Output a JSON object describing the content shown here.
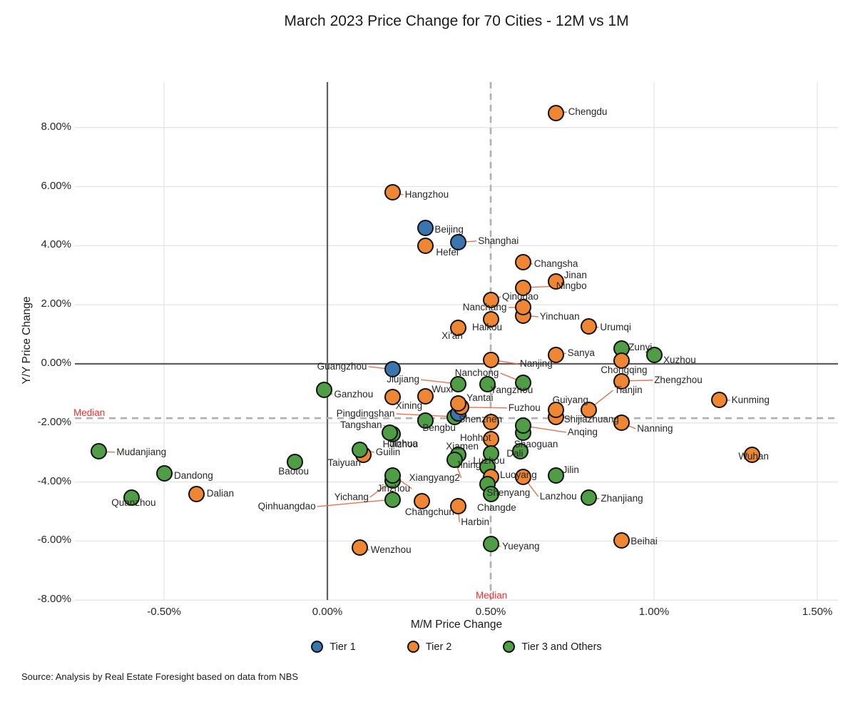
{
  "title": "March 2023 Price Change for 70 Cities - 12M vs 1M",
  "source": "Source: Analysis by Real Estate Foresight based on data from NBS",
  "axes": {
    "x_title": "M/M Price Change",
    "y_title": "Y/Y Price Change",
    "x_ticks": [
      {
        "label": "-0.50%",
        "value": -0.5
      },
      {
        "label": "0.00%",
        "value": 0.0
      },
      {
        "label": "0.50%",
        "value": 0.5
      },
      {
        "label": "1.00%",
        "value": 1.0
      },
      {
        "label": "1.50%",
        "value": 1.5
      }
    ],
    "y_ticks": [
      {
        "label": "8.00%",
        "value": 8
      },
      {
        "label": "6.00%",
        "value": 6
      },
      {
        "label": "4.00%",
        "value": 4
      },
      {
        "label": "2.00%",
        "value": 2
      },
      {
        "label": "0.00%",
        "value": 0
      },
      {
        "label": "-2.00%",
        "value": -2
      },
      {
        "label": "-4.00%",
        "value": -4
      },
      {
        "label": "-6.00%",
        "value": -6
      },
      {
        "label": "-8.00%",
        "value": -8
      }
    ]
  },
  "medians": {
    "vertical": {
      "label": "Median",
      "value": 0.5
    },
    "horizontal": {
      "label": "Median",
      "value": -1.84
    }
  },
  "legend": [
    {
      "label": "Tier 1",
      "tier": 1
    },
    {
      "label": "Tier 2",
      "tier": 2
    },
    {
      "label": "Tier 3 and Others",
      "tier": 3
    }
  ],
  "colors": {
    "tier1": "#3b75af",
    "tier2": "#ef8633",
    "tier3": "#4f9d45",
    "dot_border": "#111111",
    "leader": "#e8724e",
    "median_label": "#f82c2c",
    "median_line": "#b0b0b0",
    "axis_line": "#5f5f5f",
    "gridline": "#e4e4e4",
    "text": "#262626"
  },
  "chart_data": {
    "type": "scatter",
    "xlabel": "M/M Price Change",
    "ylabel": "Y/Y Price Change",
    "xlim": [
      -0.77,
      1.56
    ],
    "ylim": [
      -8.0,
      9.5
    ],
    "grid": true,
    "legend_position": "bottom",
    "units": "percent",
    "points": [
      {
        "city": "Beijing",
        "tier": 1,
        "x": 0.3,
        "y": 4.59,
        "lp": [
          13,
          2
        ]
      },
      {
        "city": "Shanghai",
        "tier": 1,
        "x": 0.4,
        "y": 4.11,
        "lp": [
          28,
          -2
        ],
        "ld": true
      },
      {
        "city": "Guangzhou",
        "tier": 1,
        "x": 0.2,
        "y": -0.19,
        "lp": [
          -106,
          -4
        ],
        "ld": true
      },
      {
        "city": "Shenzhen",
        "tier": 1,
        "x": 0.4,
        "y": -1.69,
        "lp": [
          1,
          8
        ],
        "z": 1
      },
      {
        "city": "Chengdu",
        "tier": 2,
        "x": 0.7,
        "y": 8.5,
        "lp": [
          17,
          -1
        ],
        "ld": true
      },
      {
        "city": "Hangzhou",
        "tier": 2,
        "x": 0.2,
        "y": 5.8,
        "lp": [
          17,
          3
        ],
        "ld": true
      },
      {
        "city": "Hefei",
        "tier": 2,
        "x": 0.3,
        "y": 3.99,
        "lp": [
          15,
          9
        ]
      },
      {
        "city": "Changsha",
        "tier": 2,
        "x": 0.6,
        "y": 3.45,
        "lp": [
          15,
          3
        ],
        "ld": true
      },
      {
        "city": "Jinan",
        "tier": 2,
        "x": 0.7,
        "y": 2.8,
        "lp": [
          11,
          -8
        ]
      },
      {
        "city": "Ningbo",
        "tier": 2,
        "x": 0.6,
        "y": 2.58,
        "lp": [
          46,
          -2
        ],
        "ld": true
      },
      {
        "city": "Qingdao",
        "tier": 2,
        "x": 0.5,
        "y": 2.15,
        "lp": [
          16,
          -5
        ],
        "ld": true
      },
      {
        "city": "Nanchang",
        "tier": 2,
        "x": 0.6,
        "y": 1.91,
        "lp": [
          -85,
          0
        ],
        "ld": true
      },
      {
        "city": "Yinchuan",
        "tier": 2,
        "x": 0.6,
        "y": 1.64,
        "lp": [
          23,
          2
        ],
        "ld": true,
        "z": 2
      },
      {
        "city": "Haikou",
        "tier": 2,
        "x": 0.5,
        "y": 1.52,
        "lp": [
          -26,
          12
        ]
      },
      {
        "city": "Xi'an",
        "tier": 2,
        "x": 0.4,
        "y": 1.21,
        "lp": [
          -23,
          11
        ]
      },
      {
        "city": "Urumqi",
        "tier": 2,
        "x": 0.8,
        "y": 1.26,
        "lp": [
          16,
          1
        ],
        "ld": true
      },
      {
        "city": "Sanya",
        "tier": 2,
        "x": 0.7,
        "y": 0.31,
        "lp": [
          16,
          -2
        ],
        "ld": true
      },
      {
        "city": "Nanjing",
        "tier": 2,
        "x": 0.5,
        "y": 0.14,
        "lp": [
          41,
          6
        ],
        "ld": true
      },
      {
        "city": "Chongqing",
        "tier": 2,
        "x": 0.9,
        "y": 0.12,
        "lp": [
          -29,
          14
        ]
      },
      {
        "city": "Zhengzhou",
        "tier": 2,
        "x": 0.9,
        "y": -0.58,
        "lp": [
          46,
          -1
        ],
        "ld": true
      },
      {
        "city": "Kunming",
        "tier": 2,
        "x": 1.2,
        "y": -1.21,
        "lp": [
          17,
          1
        ],
        "ld": true
      },
      {
        "city": "Tianjin",
        "tier": 2,
        "x": 0.8,
        "y": -1.55,
        "lp": [
          36,
          -27
        ],
        "ld": true
      },
      {
        "city": "Guiyang",
        "tier": 2,
        "x": 0.7,
        "y": -1.57,
        "lp": [
          -5,
          -14
        ]
      },
      {
        "city": "Shijiazhuang",
        "tier": 2,
        "x": 0.7,
        "y": -1.81,
        "lp": [
          11,
          3
        ],
        "z": 2
      },
      {
        "city": "Nanning",
        "tier": 2,
        "x": 0.9,
        "y": -2.0,
        "lp": [
          22,
          8
        ],
        "ld": true
      },
      {
        "city": "Xining",
        "tier": 2,
        "x": 0.2,
        "y": -1.13,
        "lp": [
          4,
          12
        ]
      },
      {
        "city": "Wuxi",
        "tier": 2,
        "x": 0.3,
        "y": -1.09,
        "lp": [
          9,
          -9
        ]
      },
      {
        "city": "Yantai",
        "tier": 2,
        "x": 0.4,
        "y": -1.35,
        "lp": [
          12,
          -8
        ],
        "ld": true
      },
      {
        "city": "Fuzhou",
        "tier": 2,
        "x": 0.41,
        "y": -1.47,
        "lp": [
          66,
          1
        ],
        "ld": true,
        "z": 2
      },
      {
        "city": "Jinhua",
        "tier": 2,
        "x": 0.5,
        "y": -1.96,
        "lp": [
          -142,
          31
        ]
      },
      {
        "city": "Hohhot",
        "tier": 2,
        "x": 0.5,
        "y": -2.56,
        "lp": [
          -43,
          -2
        ],
        "ld": true
      },
      {
        "city": "Taiyuan",
        "tier": 2,
        "x": 0.11,
        "y": -3.09,
        "lp": [
          -50,
          11
        ],
        "z": 2
      },
      {
        "city": "Wuhan",
        "tier": 2,
        "x": 1.3,
        "y": -3.09,
        "lp": [
          -19,
          2
        ]
      },
      {
        "city": "Luoyang",
        "tier": 2,
        "x": 0.5,
        "y": -3.84,
        "lp": [
          13,
          -3
        ],
        "ld": true
      },
      {
        "city": "Lanzhou",
        "tier": 2,
        "x": 0.6,
        "y": -3.82,
        "lp": [
          23,
          28
        ],
        "ld": true
      },
      {
        "city": "Dalian",
        "tier": 2,
        "x": -0.4,
        "y": -4.4,
        "lp": [
          14,
          0
        ]
      },
      {
        "city": "Changchun",
        "tier": 2,
        "x": 0.29,
        "y": -4.66,
        "lp": [
          -24,
          15
        ]
      },
      {
        "city": "Harbin",
        "tier": 2,
        "x": 0.4,
        "y": -4.83,
        "lp": [
          4,
          22
        ],
        "ld": true
      },
      {
        "city": "Wenzhou",
        "tier": 2,
        "x": 0.1,
        "y": -6.21,
        "lp": [
          15,
          4
        ],
        "ld": true
      },
      {
        "city": "Beihai",
        "tier": 2,
        "x": 0.9,
        "y": -5.99,
        "lp": [
          13,
          1
        ]
      },
      {
        "city": "Zunyi",
        "tier": 3,
        "x": 0.9,
        "y": 0.53,
        "lp": [
          10,
          -1
        ]
      },
      {
        "city": "Xuzhou",
        "tier": 3,
        "x": 1.0,
        "y": 0.29,
        "lp": [
          13,
          7
        ]
      },
      {
        "city": "Ganzhou",
        "tier": 3,
        "x": -0.01,
        "y": -0.89,
        "lp": [
          14,
          6
        ],
        "ld": true
      },
      {
        "city": "Jiujiang",
        "tier": 3,
        "x": 0.4,
        "y": -0.68,
        "lp": [
          -100,
          -6
        ],
        "ld": true
      },
      {
        "city": "Nanchong",
        "tier": 3,
        "x": 0.6,
        "y": -0.63,
        "lp": [
          -96,
          -13
        ],
        "ld": true
      },
      {
        "city": "Yangzhou",
        "tier": 3,
        "x": 0.49,
        "y": -0.68,
        "lp": [
          4,
          9
        ]
      },
      {
        "city": "Pingdingshan",
        "tier": 3,
        "x": 0.39,
        "y": -1.79,
        "lp": [
          -166,
          -4
        ],
        "ld": true,
        "z": 0
      },
      {
        "city": "Bengbu",
        "tier": 3,
        "x": 0.3,
        "y": -1.91,
        "lp": [
          -4,
          11
        ]
      },
      {
        "city": "Tangshan",
        "tier": 3,
        "x": 0.19,
        "y": -2.34,
        "lp": [
          -69,
          -11
        ],
        "ld": true
      },
      {
        "city": "Huizhou",
        "tier": 3,
        "x": 0.2,
        "y": -2.37,
        "lp": [
          -14,
          15
        ],
        "z": 0
      },
      {
        "city": "Anqing",
        "tier": 3,
        "x": 0.6,
        "y": -2.1,
        "lp": [
          62,
          9
        ],
        "ld": true
      },
      {
        "city": "Shaoguan",
        "tier": 3,
        "x": 0.6,
        "y": -2.32,
        "lp": [
          -13,
          17
        ],
        "z": 2
      },
      {
        "city": "Dali",
        "tier": 3,
        "x": 0.59,
        "y": -2.97,
        "lp": [
          -19,
          3
        ]
      },
      {
        "city": "Jining",
        "tier": 3,
        "x": 0.5,
        "y": -3.02,
        "lp": [
          -49,
          17
        ]
      },
      {
        "city": "Xiamen",
        "tier": 3,
        "x": 0.4,
        "y": -3.07,
        "lp": [
          -17,
          -11
        ]
      },
      {
        "city": "Xiangyang2",
        "tier": 3,
        "x": 0.39,
        "y": -3.26,
        "lp": [
          -64,
          25
        ],
        "ld": true
      },
      {
        "city": "Luzhou",
        "tier": 3,
        "x": 0.49,
        "y": -3.5,
        "lp": [
          -20,
          -9
        ]
      },
      {
        "city": "Shenyang",
        "tier": 3,
        "x": 0.49,
        "y": -4.06,
        "lp": [
          -1,
          13
        ]
      },
      {
        "city": "Changde",
        "tier": 3,
        "x": 0.5,
        "y": -4.42,
        "lp": [
          -19,
          19
        ]
      },
      {
        "city": "Jilin",
        "tier": 3,
        "x": 0.7,
        "y": -3.79,
        "lp": [
          9,
          -8
        ]
      },
      {
        "city": "Zhanjiang",
        "tier": 3,
        "x": 0.8,
        "y": -4.52,
        "lp": [
          17,
          2
        ],
        "ld": true
      },
      {
        "city": "Guilin",
        "tier": 3,
        "x": 0.1,
        "y": -2.9,
        "lp": [
          22,
          4
        ],
        "ld": true
      },
      {
        "city": "Mudanjiang",
        "tier": 3,
        "x": -0.7,
        "y": -2.97,
        "lp": [
          25,
          1
        ],
        "ld": true
      },
      {
        "city": "Dandong",
        "tier": 3,
        "x": -0.5,
        "y": -3.7,
        "lp": [
          14,
          4
        ]
      },
      {
        "city": "Baotou",
        "tier": 3,
        "x": -0.1,
        "y": -3.31,
        "lp": [
          -23,
          14
        ]
      },
      {
        "city": "Quanzhou",
        "tier": 3,
        "x": -0.6,
        "y": -4.54,
        "lp": [
          -28,
          7
        ]
      },
      {
        "city": "Jinzhou",
        "tier": 3,
        "x": 0.2,
        "y": -3.77,
        "lp": [
          -22,
          19
        ],
        "ld": true
      },
      {
        "city": "Yichang",
        "tier": 3,
        "x": 0.2,
        "y": -3.94,
        "lp": [
          -82,
          24
        ],
        "ld": true,
        "z": 2
      },
      {
        "city": "Qinhuangdao",
        "tier": 3,
        "x": 0.2,
        "y": -4.59,
        "lp": [
          -189,
          10
        ],
        "ld": true
      },
      {
        "city": "Yueyang",
        "tier": 3,
        "x": 0.5,
        "y": -6.11,
        "lp": [
          16,
          3
        ],
        "ld": true
      }
    ]
  }
}
